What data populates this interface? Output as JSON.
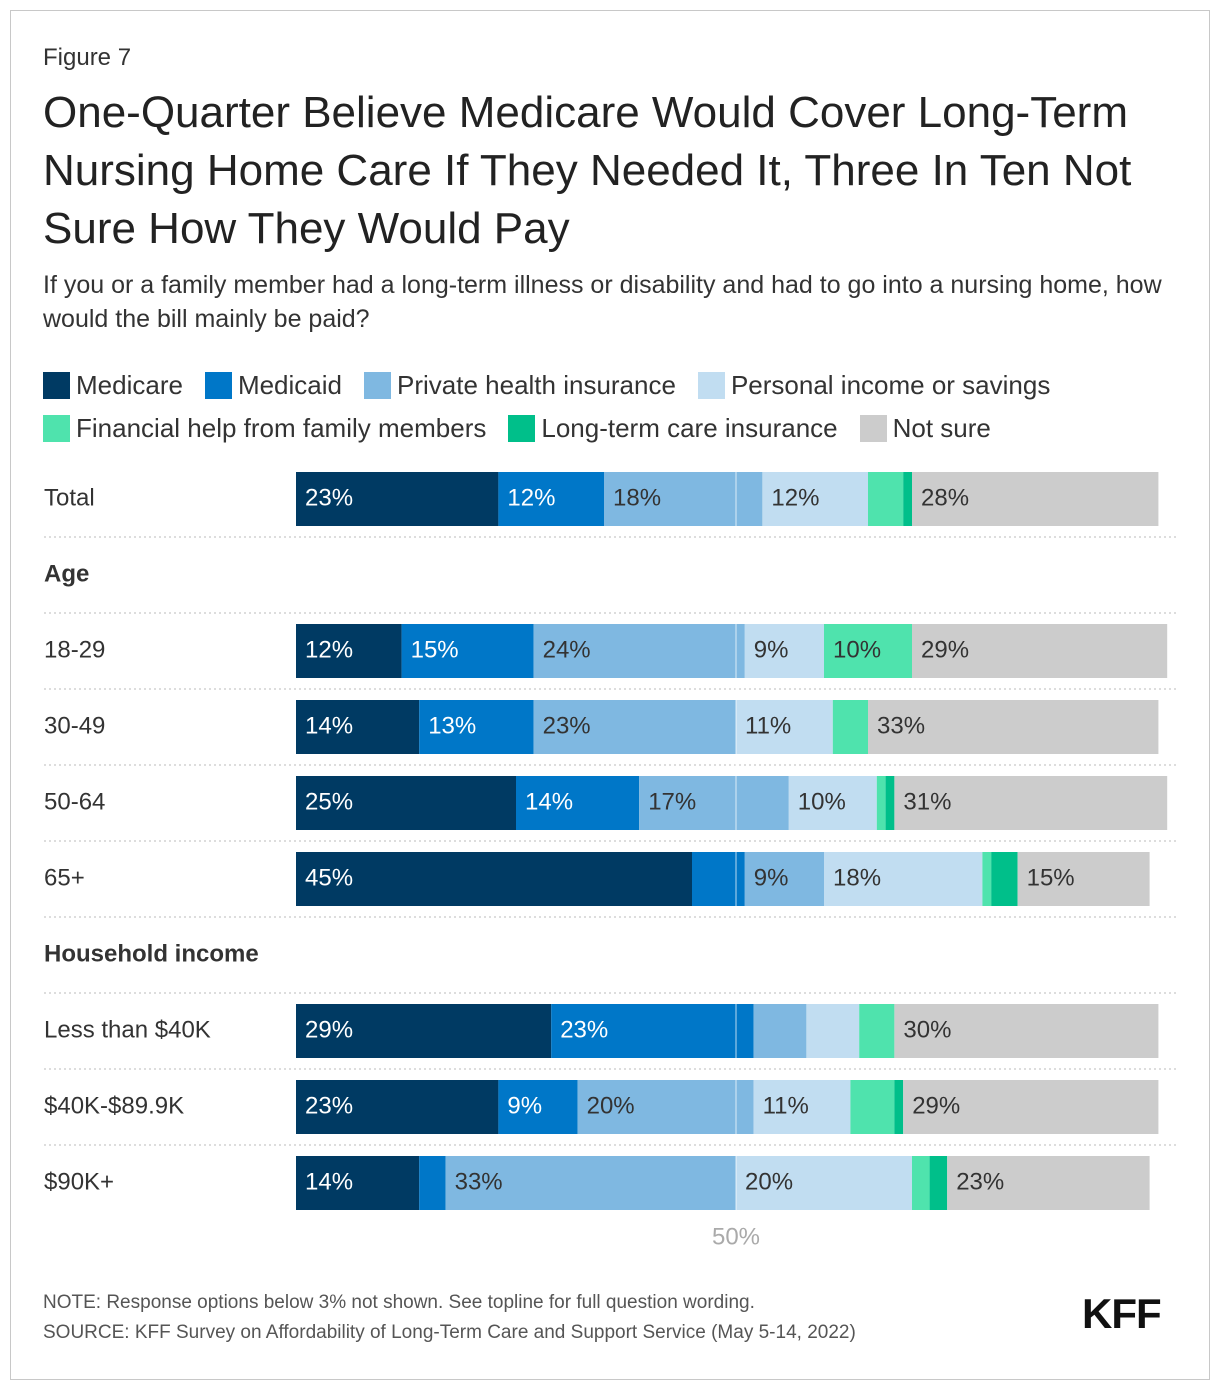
{
  "chart_data": {
    "type": "stacked-bar-horizontal",
    "figure_label": "Figure 7",
    "title": "One-Quarter Believe Medicare Would Cover Long-Term Nursing Home Care If They Needed It, Three In Ten Not Sure How They Would Pay",
    "subtitle": "If you or a family member had a long-term illness or disability and had to go into a nursing home, how would the bill mainly be paid?",
    "categories": [
      "Total",
      "Age",
      "18-29",
      "30-49",
      "50-64",
      "65+",
      "Household income",
      "Less than $40K",
      "$40K-$89.9K",
      "$90K+"
    ],
    "series": [
      {
        "name": "Medicare",
        "color": "#003a63",
        "values": [
          23,
          null,
          12,
          14,
          25,
          45,
          null,
          29,
          23,
          14
        ],
        "value_labels": [
          "23%",
          null,
          "12%",
          "14%",
          "25%",
          "45%",
          null,
          "29%",
          "23%",
          "14%"
        ]
      },
      {
        "name": "Medicaid",
        "color": "#0077c8",
        "values": [
          12,
          null,
          15,
          13,
          14,
          6,
          null,
          23,
          9,
          3
        ],
        "value_labels": [
          "12%",
          null,
          "15%",
          "13%",
          "14%",
          null,
          null,
          "23%",
          "9%",
          null
        ]
      },
      {
        "name": "Private health insurance",
        "color": "#7fb8e1",
        "values": [
          18,
          null,
          24,
          23,
          17,
          9,
          null,
          6,
          20,
          33
        ],
        "value_labels": [
          "18%",
          null,
          "24%",
          "23%",
          "17%",
          "9%",
          null,
          null,
          "20%",
          "33%"
        ]
      },
      {
        "name": "Personal income or savings",
        "color": "#c1ddf1",
        "values": [
          12,
          null,
          9,
          11,
          10,
          18,
          null,
          6,
          11,
          20
        ],
        "value_labels": [
          "12%",
          null,
          "9%",
          "11%",
          "10%",
          "18%",
          null,
          null,
          "11%",
          "20%"
        ]
      },
      {
        "name": "Financial help from family members",
        "color": "#4fe3ad",
        "values": [
          4,
          null,
          10,
          4,
          1,
          1,
          null,
          4,
          5,
          2
        ],
        "value_labels": [
          null,
          null,
          "10%",
          null,
          null,
          null,
          null,
          null,
          null,
          null
        ]
      },
      {
        "name": "Long-term care insurance",
        "color": "#00bf8a",
        "values": [
          1,
          null,
          0,
          0,
          1,
          3,
          null,
          0,
          1,
          2
        ],
        "value_labels": [
          null,
          null,
          null,
          null,
          null,
          null,
          null,
          null,
          null,
          null
        ]
      },
      {
        "name": "Not sure",
        "color": "#cccccc",
        "values": [
          28,
          null,
          29,
          33,
          31,
          15,
          null,
          30,
          29,
          23
        ],
        "value_labels": [
          "28%",
          null,
          "29%",
          "33%",
          "31%",
          "15%",
          null,
          "30%",
          "29%",
          "23%"
        ]
      }
    ],
    "xlim": [
      0,
      100
    ],
    "xticks": [
      {
        "value": 50,
        "label": "50%"
      }
    ],
    "note": "NOTE: Response options below 3% not shown. See topline for full question wording.",
    "source": "SOURCE: KFF Survey on Affordability of Long-Term Care and Support Service (May 5-14, 2022)",
    "logo": "KFF"
  }
}
